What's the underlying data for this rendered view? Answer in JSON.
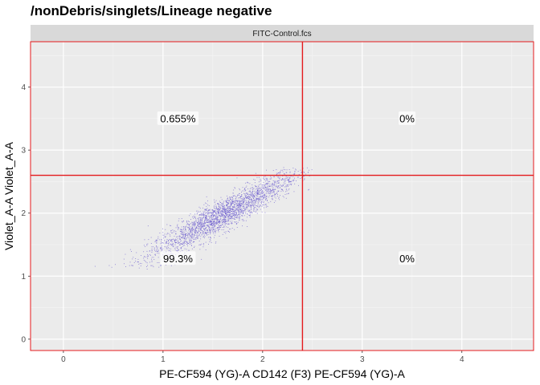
{
  "title": "/nonDebris/singlets/Lineage negative",
  "facet_label": "FITC-Control.fcs",
  "chart_data": {
    "type": "scatter",
    "title": "/nonDebris/singlets/Lineage negative",
    "facet": "FITC-Control.fcs",
    "xlabel": "PE-CF594 (YG)-A CD142 (F3) PE-CF594 (YG)-A",
    "ylabel": "Violet_A-A Violet_A-A",
    "xlim": [
      -0.33,
      4.72
    ],
    "ylim": [
      -0.18,
      4.72
    ],
    "x_ticks": [
      0,
      1,
      2,
      3,
      4
    ],
    "y_ticks": [
      0,
      1,
      2,
      3,
      4
    ],
    "x_tick_labels": [
      "0",
      "1",
      "2",
      "3",
      "4"
    ],
    "y_tick_labels": [
      "0",
      "1",
      "2",
      "3",
      "4"
    ],
    "grid": true,
    "gate": {
      "x": 2.4,
      "y": 2.6,
      "color": "#e41a1c"
    },
    "quadrant_labels": [
      {
        "text": "0.655%",
        "x": 1.15,
        "y": 3.5
      },
      {
        "text": "0%",
        "x": 3.45,
        "y": 3.5
      },
      {
        "text": "99.3%",
        "x": 1.15,
        "y": 1.28
      },
      {
        "text": "0%",
        "x": 3.45,
        "y": 1.28
      }
    ],
    "point_color": "#6a5acd",
    "point_cloud": {
      "n_points": 2600,
      "x_range": [
        0.05,
        2.5
      ],
      "y_range": [
        1.1,
        2.75
      ],
      "trend": "positive linear, centered near x=1.6, y=2.0"
    }
  }
}
